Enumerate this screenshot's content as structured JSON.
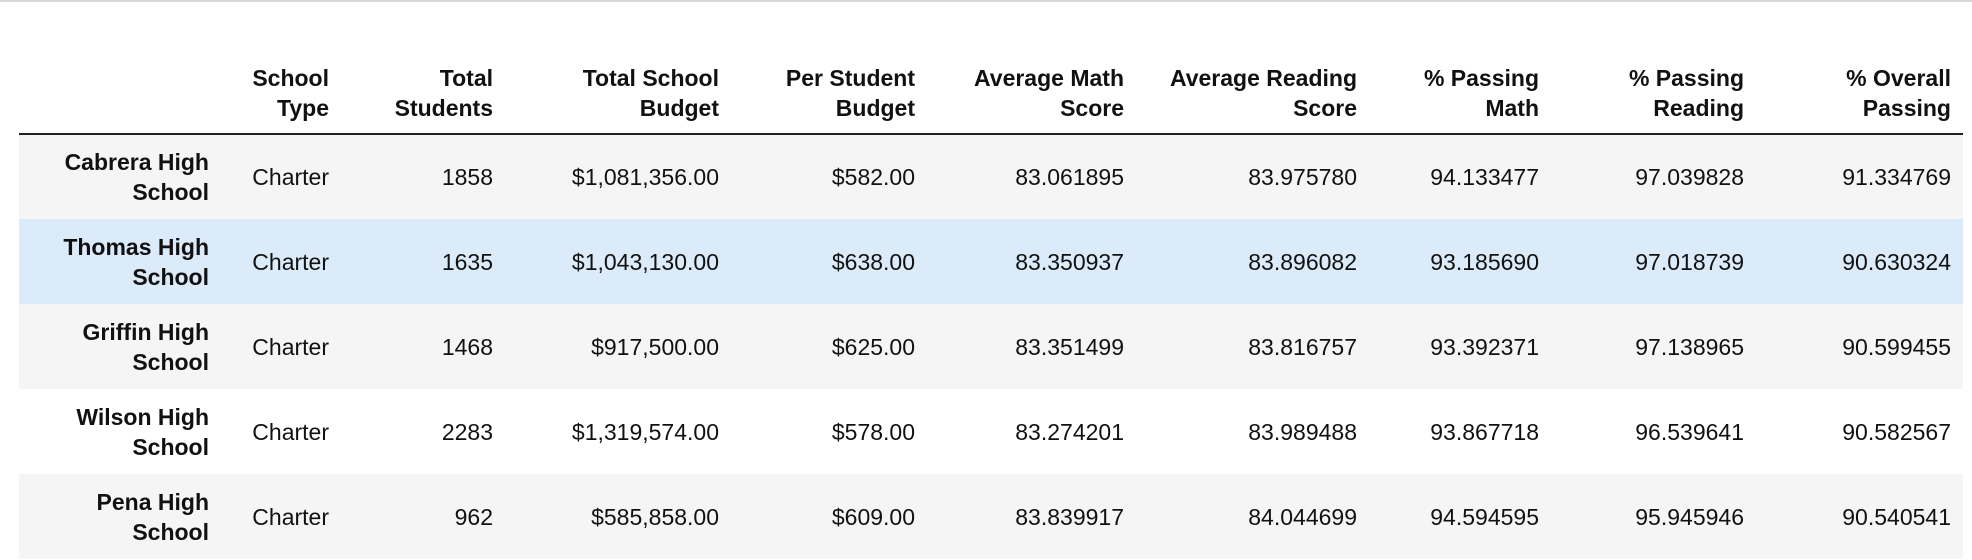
{
  "table": {
    "columns": [
      {
        "line1": "",
        "line2": ""
      },
      {
        "line1": "School",
        "line2": "Type"
      },
      {
        "line1": "Total",
        "line2": "Students"
      },
      {
        "line1": "Total School",
        "line2": "Budget"
      },
      {
        "line1": "Per Student",
        "line2": "Budget"
      },
      {
        "line1": "Average Math",
        "line2": "Score"
      },
      {
        "line1": "Average Reading",
        "line2": "Score"
      },
      {
        "line1": "% Passing",
        "line2": "Math"
      },
      {
        "line1": "% Passing",
        "line2": "Reading"
      },
      {
        "line1": "% Overall",
        "line2": "Passing"
      }
    ],
    "rows": [
      {
        "name1": "Cabrera High",
        "name2": "School",
        "type": "Charter",
        "students": "1858",
        "budget": "$1,081,356.00",
        "per_student": "$582.00",
        "avg_math": "83.061895",
        "avg_reading": "83.975780",
        "pct_math": "94.133477",
        "pct_reading": "97.039828",
        "pct_overall": "91.334769"
      },
      {
        "name1": "Thomas High",
        "name2": "School",
        "type": "Charter",
        "students": "1635",
        "budget": "$1,043,130.00",
        "per_student": "$638.00",
        "avg_math": "83.350937",
        "avg_reading": "83.896082",
        "pct_math": "93.185690",
        "pct_reading": "97.018739",
        "pct_overall": "90.630324"
      },
      {
        "name1": "Griffin High",
        "name2": "School",
        "type": "Charter",
        "students": "1468",
        "budget": "$917,500.00",
        "per_student": "$625.00",
        "avg_math": "83.351499",
        "avg_reading": "83.816757",
        "pct_math": "93.392371",
        "pct_reading": "97.138965",
        "pct_overall": "90.599455"
      },
      {
        "name1": "Wilson High",
        "name2": "School",
        "type": "Charter",
        "students": "2283",
        "budget": "$1,319,574.00",
        "per_student": "$578.00",
        "avg_math": "83.274201",
        "avg_reading": "83.989488",
        "pct_math": "93.867718",
        "pct_reading": "96.539641",
        "pct_overall": "90.582567"
      },
      {
        "name1": "Pena High",
        "name2": "School",
        "type": "Charter",
        "students": "962",
        "budget": "$585,858.00",
        "per_student": "$609.00",
        "avg_math": "83.839917",
        "avg_reading": "84.044699",
        "pct_math": "94.594595",
        "pct_reading": "95.945946",
        "pct_overall": "90.540541"
      }
    ],
    "highlight_color": "#dcebf9",
    "stripe_color": "#f5f5f5"
  }
}
